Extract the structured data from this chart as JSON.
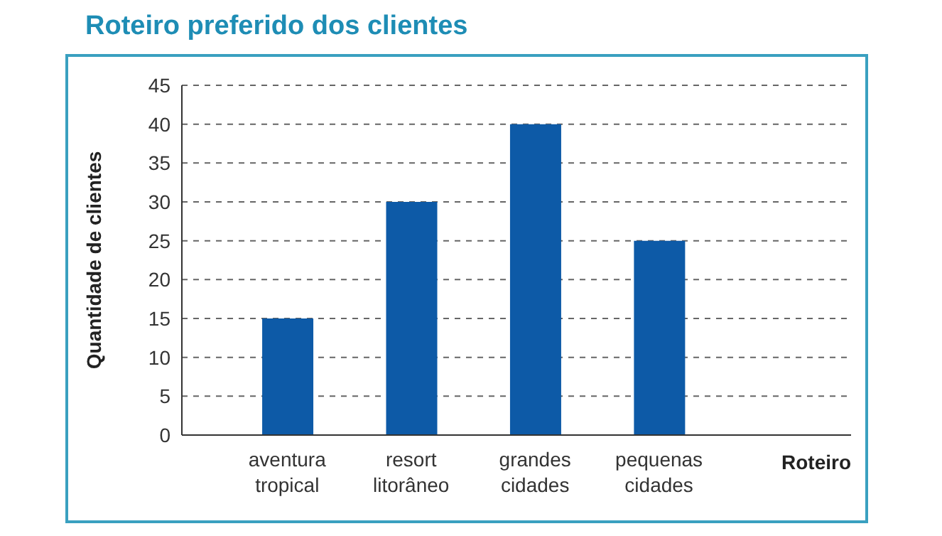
{
  "chart_data": {
    "type": "bar",
    "title": "Roteiro preferido dos clientes",
    "xlabel": "Roteiro",
    "ylabel": "Quantidade de clientes",
    "categories": [
      "aventura tropical",
      "resort litorâneo",
      "grandes cidades",
      "pequenas cidades"
    ],
    "values": [
      15,
      30,
      40,
      25
    ],
    "color": "#0d5aa7",
    "ylim": [
      0,
      45
    ],
    "yticks": [
      0,
      5,
      10,
      15,
      20,
      25,
      30,
      35,
      40,
      45
    ],
    "grid": "y"
  }
}
